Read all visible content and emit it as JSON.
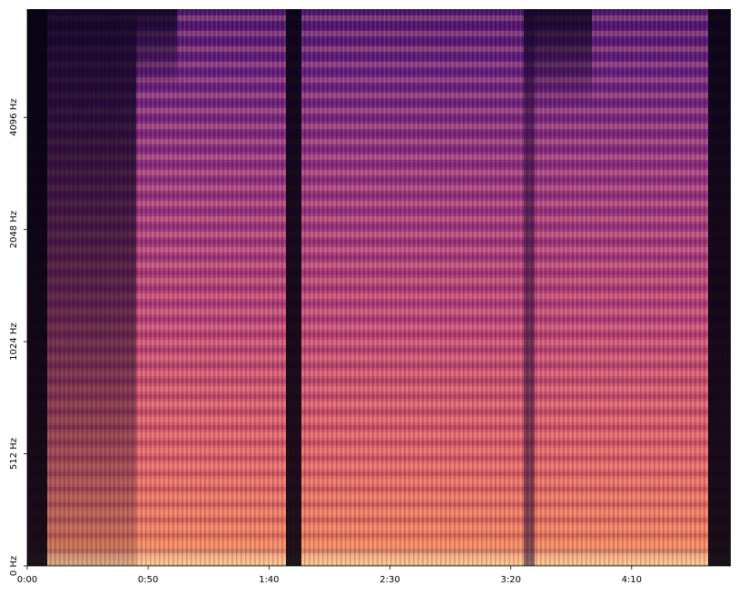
{
  "chart_data": {
    "type": "spectrogram",
    "xlim": [
      0,
      291
    ],
    "xticks": [
      {
        "value": 0,
        "label": "0:00"
      },
      {
        "value": 50,
        "label": "0:50"
      },
      {
        "value": 100,
        "label": "1:40"
      },
      {
        "value": 150,
        "label": "2:30"
      },
      {
        "value": 200,
        "label": "3:20"
      },
      {
        "value": 250,
        "label": "4:10"
      }
    ],
    "ylim": [
      0,
      8000
    ],
    "yscale": "symlog",
    "linthresh": 512,
    "base": 2,
    "yticks": [
      {
        "value": 0,
        "label": "0 Hz"
      },
      {
        "value": 512,
        "label": "512 Hz"
      },
      {
        "value": 1024,
        "label": "1024 Hz"
      },
      {
        "value": 2048,
        "label": "2048 Hz"
      },
      {
        "value": 4096,
        "label": "4096 Hz"
      }
    ]
  }
}
